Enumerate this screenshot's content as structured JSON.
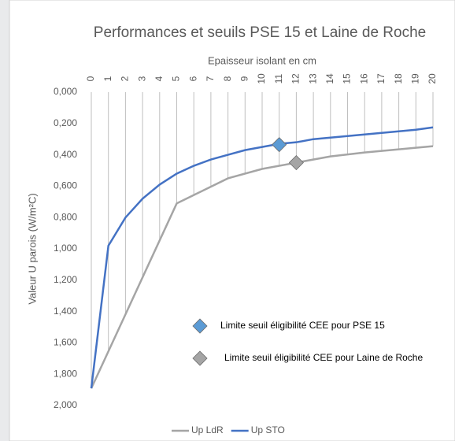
{
  "chart_data": {
    "type": "line",
    "title": "Performances et seuils PSE 15 et Laine de Roche",
    "xlabel": "Epaisseur isolant en cm",
    "ylabel": "Valeur U parois (W/m²C)",
    "xlim": [
      0,
      20
    ],
    "xticks": [
      0,
      1,
      2,
      3,
      4,
      5,
      6,
      7,
      8,
      9,
      10,
      11,
      12,
      13,
      14,
      15,
      16,
      17,
      18,
      19,
      20
    ],
    "ylim": [
      0,
      2
    ],
    "y_inverted": true,
    "yticks": [
      {
        "value": 0,
        "label": "0,000"
      },
      {
        "value": 0.2,
        "label": "0,200"
      },
      {
        "value": 0.4,
        "label": "0,400"
      },
      {
        "value": 0.6,
        "label": "0,600"
      },
      {
        "value": 0.8,
        "label": "0,800"
      },
      {
        "value": 1.0,
        "label": "1,000"
      },
      {
        "value": 1.2,
        "label": "1,200"
      },
      {
        "value": 1.4,
        "label": "1,400"
      },
      {
        "value": 1.6,
        "label": "1,600"
      },
      {
        "value": 1.8,
        "label": "1,800"
      },
      {
        "value": 2.0,
        "label": "2,000"
      }
    ],
    "grid": "x",
    "legend": "bottom",
    "series": [
      {
        "name": "Up LdR",
        "color": "#a5a5a5",
        "x": [
          0,
          5,
          8,
          10,
          12,
          14,
          16,
          18,
          20
        ],
        "values": [
          1.89,
          0.71,
          0.55,
          0.49,
          0.45,
          0.41,
          0.385,
          0.365,
          0.345
        ]
      },
      {
        "name": "Up STO",
        "color": "#4472c4",
        "x": [
          0,
          1,
          2,
          3,
          4,
          5,
          6,
          7,
          8,
          9,
          10,
          11,
          12,
          13,
          14,
          15,
          16,
          17,
          18,
          19,
          20
        ],
        "values": [
          1.89,
          0.98,
          0.8,
          0.68,
          0.59,
          0.52,
          0.47,
          0.43,
          0.4,
          0.37,
          0.35,
          0.33,
          0.32,
          0.3,
          0.29,
          0.28,
          0.27,
          0.26,
          0.25,
          0.24,
          0.225
        ]
      }
    ],
    "markers": [
      {
        "name": "Limite seuil éligibilité CEE pour PSE 15",
        "color": "#5b9bd5",
        "x": 11,
        "y": 0.335
      },
      {
        "name": "Limite seuil éligibilité CEE pour Laine de Roche",
        "color": "#a5a5a5",
        "x": 12,
        "y": 0.45
      }
    ]
  }
}
